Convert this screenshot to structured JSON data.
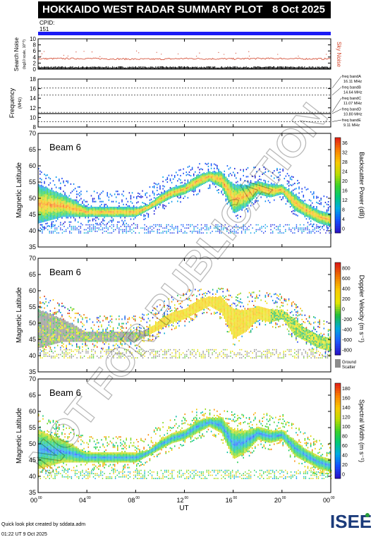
{
  "header": {
    "title": "HOKKAIDO WEST RADAR SUMMARY PLOT",
    "date": "8 Oct 2025",
    "cpid_label": "CPID:",
    "cpid_value": "151"
  },
  "watermark": "NOT FOR PUBLICATION",
  "footer": {
    "credit": "Quick look plot created by sddata.adm",
    "timestamp": "01:22 UT  9 Oct 2025",
    "logo": "ISEE"
  },
  "colors": {
    "cpid_bar": "#1b1bf5",
    "noise_series": "#d2452b",
    "frequency_series": "#000000"
  },
  "chart_data": [
    {
      "type": "line",
      "panel": "search-noise",
      "ylabel": "Search Noise",
      "ylabel_sub": "(log10 scale, 10^?)",
      "right_label": "Sky Noise",
      "ylim": [
        0,
        10
      ],
      "yticks": [
        "0",
        "2",
        "4",
        "6",
        "8",
        "10"
      ],
      "x": [
        0,
        2,
        4,
        6,
        8,
        10,
        12,
        14,
        16,
        18,
        20,
        22,
        24
      ],
      "series": [
        {
          "values": [
            3.4,
            3.5,
            3.5,
            3.4,
            3.3,
            3.3,
            3.5,
            3.4,
            3.4,
            3.5,
            3.5,
            3.4,
            3.4
          ]
        }
      ]
    },
    {
      "type": "line",
      "panel": "frequency",
      "ylabel": "Frequency",
      "ylabel_sub": "(MHz)",
      "ylim": [
        8,
        18
      ],
      "yticks": [
        "8",
        "10",
        "12",
        "14",
        "16",
        "18"
      ],
      "freq_bands": [
        {
          "label": "freq bandA",
          "value_label": "16.11 MHz",
          "value": 16.11
        },
        {
          "label": "freq bandB",
          "value_label": "14.64 MHz",
          "value": 14.64
        },
        {
          "label": "freq bandC",
          "value_label": "11.07 MHz",
          "value": 11.07
        },
        {
          "label": "freq bandD",
          "value_label": "10.80 MHz",
          "value": 10.8
        },
        {
          "label": "freq bandE",
          "value_label": "9.11 MHz",
          "value": 9.11
        }
      ],
      "x": [
        0,
        24
      ],
      "series": [
        {
          "values": [
            10.8,
            10.8
          ]
        }
      ]
    },
    {
      "type": "heatmap",
      "panel": "power",
      "beam": "Beam  6",
      "ylabel": "Magnetic Latitude",
      "ylim": [
        35,
        70
      ],
      "yticks": [
        "35",
        "40",
        "45",
        "50",
        "55",
        "60",
        "65",
        "70"
      ],
      "colorbar_label": "Backscatter Power (dB)",
      "colorbar_ticks": [
        "0",
        "4",
        "8",
        "12",
        "16",
        "20",
        "24",
        "28",
        "32",
        "36"
      ],
      "colorbar_range": [
        0,
        36
      ],
      "scatter_band": {
        "x": [
          0,
          2,
          4,
          6,
          8,
          9,
          10,
          11,
          12,
          13,
          14,
          15,
          16,
          17,
          18,
          19,
          20,
          21,
          22,
          23,
          24
        ],
        "lower": [
          42,
          44,
          44,
          44,
          44,
          46,
          48,
          50,
          51,
          53,
          55,
          53,
          45,
          47,
          51,
          50,
          51,
          46,
          44,
          42,
          41
        ],
        "upper": [
          54,
          51,
          47,
          47,
          47,
          48,
          51,
          53,
          54,
          57,
          58,
          58,
          54,
          54,
          55,
          54,
          54,
          51,
          48,
          46,
          45
        ]
      },
      "ground_band": [
        39,
        42
      ]
    },
    {
      "type": "heatmap",
      "panel": "velocity",
      "beam": "Beam  6",
      "ylabel": "Magnetic Latitude",
      "ylim": [
        35,
        70
      ],
      "yticks": [
        "35",
        "40",
        "45",
        "50",
        "55",
        "60",
        "65",
        "70"
      ],
      "colorbar_label": "Doppler Velocity (m s⁻¹)",
      "colorbar_ticks": [
        "-800",
        "-600",
        "-400",
        "-200",
        "0",
        "200",
        "400",
        "600",
        "800"
      ],
      "colorbar_range": [
        -800,
        800
      ],
      "ground_scatter_label": "Ground Scatter",
      "scatter_band": {
        "x": [
          0,
          2,
          4,
          6,
          8,
          9,
          10,
          11,
          12,
          13,
          14,
          15,
          16,
          17,
          18,
          19,
          20,
          21,
          22,
          23,
          24
        ],
        "lower": [
          42,
          44,
          44,
          44,
          44,
          46,
          48,
          50,
          51,
          53,
          55,
          53,
          45,
          47,
          51,
          50,
          51,
          46,
          44,
          42,
          41
        ],
        "upper": [
          54,
          51,
          47,
          47,
          47,
          48,
          51,
          53,
          54,
          57,
          58,
          58,
          54,
          54,
          55,
          54,
          54,
          51,
          48,
          46,
          45
        ]
      },
      "ground_band": [
        39,
        42
      ]
    },
    {
      "type": "heatmap",
      "panel": "width",
      "beam": "Beam  6",
      "ylabel": "Magnetic Latitude",
      "ylim": [
        35,
        70
      ],
      "yticks": [
        "35",
        "40",
        "45",
        "50",
        "55",
        "60",
        "65",
        "70"
      ],
      "colorbar_label": "Spectral Width (m s⁻¹)",
      "colorbar_ticks": [
        "0",
        "20",
        "40",
        "60",
        "80",
        "100",
        "120",
        "140",
        "160",
        "180"
      ],
      "colorbar_range": [
        0,
        180
      ],
      "scatter_band": {
        "x": [
          0,
          2,
          4,
          6,
          8,
          9,
          10,
          11,
          12,
          13,
          14,
          15,
          16,
          17,
          18,
          19,
          20,
          21,
          22,
          23,
          24
        ],
        "lower": [
          42,
          44,
          44,
          44,
          44,
          46,
          48,
          50,
          51,
          53,
          55,
          53,
          45,
          47,
          51,
          50,
          51,
          46,
          44,
          42,
          41
        ],
        "upper": [
          54,
          51,
          47,
          47,
          47,
          48,
          51,
          53,
          54,
          57,
          58,
          58,
          54,
          54,
          55,
          54,
          54,
          51,
          48,
          46,
          45
        ]
      },
      "ground_band": [
        39,
        42
      ]
    }
  ],
  "x_axis": {
    "label": "UT",
    "range": [
      0,
      24
    ],
    "ticks": [
      {
        "v": 0,
        "hh": "00",
        "mm": "00"
      },
      {
        "v": 4,
        "hh": "04",
        "mm": "00"
      },
      {
        "v": 8,
        "hh": "08",
        "mm": "00"
      },
      {
        "v": 12,
        "hh": "12",
        "mm": "00"
      },
      {
        "v": 16,
        "hh": "16",
        "mm": "00"
      },
      {
        "v": 20,
        "hh": "20",
        "mm": "00"
      },
      {
        "v": 24,
        "hh": "00",
        "mm": "00"
      }
    ]
  }
}
